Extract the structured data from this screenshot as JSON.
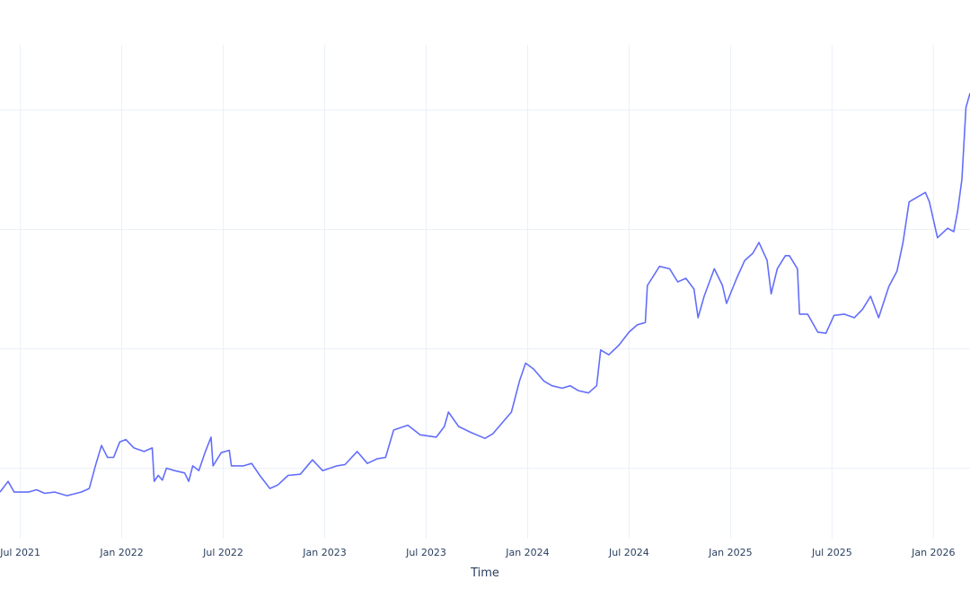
{
  "chart_data": {
    "type": "line",
    "title": "",
    "xlabel": "Time",
    "ylabel": "",
    "line_color": "#636efa",
    "grid_color": "#ebf0f8",
    "text_color": "#2a3f5f",
    "grid": true,
    "xlim": [
      2021.4,
      2026.18
    ],
    "ylim": [
      0.41,
      4.62
    ],
    "y_gridlines": [
      1,
      2,
      3,
      4
    ],
    "x_ticks": [
      {
        "label": "Jul 2021",
        "t": 2021.5
      },
      {
        "label": "Jan 2022",
        "t": 2022.0
      },
      {
        "label": "Jul 2022",
        "t": 2022.5
      },
      {
        "label": "Jan 2023",
        "t": 2023.0
      },
      {
        "label": "Jul 2023",
        "t": 2023.5
      },
      {
        "label": "Jan 2024",
        "t": 2024.0
      },
      {
        "label": "Jul 2024",
        "t": 2024.5
      },
      {
        "label": "Jan 2025",
        "t": 2025.0
      },
      {
        "label": "Jul 2025",
        "t": 2025.5
      },
      {
        "label": "Jan 2026",
        "t": 2026.0
      }
    ],
    "series": [
      {
        "name": "value",
        "x": [
          2021.4,
          2021.44,
          2021.47,
          2021.54,
          2021.58,
          2021.62,
          2021.67,
          2021.73,
          2021.8,
          2021.84,
          2021.87,
          2021.9,
          2021.93,
          2021.96,
          2021.99,
          2022.02,
          2022.06,
          2022.11,
          2022.15,
          2022.16,
          2022.18,
          2022.2,
          2022.22,
          2022.26,
          2022.31,
          2022.33,
          2022.35,
          2022.38,
          2022.41,
          2022.44,
          2022.45,
          2022.49,
          2022.53,
          2022.54,
          2022.6,
          2022.64,
          2022.68,
          2022.73,
          2022.77,
          2022.82,
          2022.88,
          2022.94,
          2022.99,
          2023.06,
          2023.1,
          2023.16,
          2023.21,
          2023.26,
          2023.3,
          2023.34,
          2023.41,
          2023.47,
          2023.55,
          2023.59,
          2023.61,
          2023.66,
          2023.72,
          2023.79,
          2023.83,
          2023.88,
          2023.92,
          2023.96,
          2023.99,
          2024.03,
          2024.08,
          2024.12,
          2024.17,
          2024.21,
          2024.25,
          2024.3,
          2024.34,
          2024.36,
          2024.4,
          2024.45,
          2024.5,
          2024.54,
          2024.58,
          2024.59,
          2024.65,
          2024.7,
          2024.74,
          2024.78,
          2024.82,
          2024.84,
          2024.87,
          2024.92,
          2024.96,
          2024.98,
          2025.03,
          2025.07,
          2025.11,
          2025.14,
          2025.18,
          2025.2,
          2025.23,
          2025.27,
          2025.29,
          2025.33,
          2025.34,
          2025.38,
          2025.43,
          2025.47,
          2025.51,
          2025.56,
          2025.61,
          2025.65,
          2025.69,
          2025.73,
          2025.78,
          2025.82,
          2025.85,
          2025.88,
          2025.91,
          2025.96,
          2025.98,
          2026.02,
          2026.07,
          2026.1,
          2026.12,
          2026.14,
          2026.16,
          2026.18
        ],
        "y": [
          0.8,
          0.89,
          0.8,
          0.8,
          0.82,
          0.79,
          0.8,
          0.77,
          0.8,
          0.83,
          1.02,
          1.19,
          1.09,
          1.09,
          1.22,
          1.24,
          1.17,
          1.14,
          1.17,
          0.89,
          0.94,
          0.9,
          1.0,
          0.98,
          0.96,
          0.89,
          1.02,
          0.98,
          1.13,
          1.26,
          1.02,
          1.13,
          1.15,
          1.02,
          1.02,
          1.04,
          0.94,
          0.83,
          0.86,
          0.94,
          0.95,
          1.07,
          0.98,
          1.02,
          1.03,
          1.14,
          1.04,
          1.08,
          1.09,
          1.32,
          1.36,
          1.28,
          1.26,
          1.35,
          1.47,
          1.35,
          1.3,
          1.25,
          1.29,
          1.39,
          1.47,
          1.73,
          1.88,
          1.83,
          1.73,
          1.69,
          1.67,
          1.69,
          1.65,
          1.63,
          1.69,
          1.99,
          1.95,
          2.03,
          2.14,
          2.2,
          2.22,
          2.53,
          2.69,
          2.67,
          2.56,
          2.59,
          2.5,
          2.26,
          2.44,
          2.67,
          2.53,
          2.38,
          2.59,
          2.74,
          2.8,
          2.89,
          2.74,
          2.46,
          2.67,
          2.78,
          2.78,
          2.67,
          2.29,
          2.29,
          2.14,
          2.13,
          2.28,
          2.29,
          2.26,
          2.33,
          2.44,
          2.26,
          2.52,
          2.65,
          2.89,
          3.23,
          3.26,
          3.31,
          3.23,
          2.93,
          3.01,
          2.98,
          3.16,
          3.42,
          4.02,
          4.14
        ]
      }
    ]
  }
}
